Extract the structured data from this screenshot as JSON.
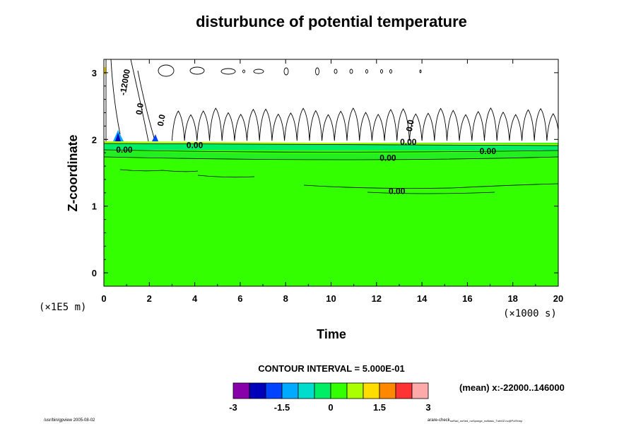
{
  "chart_data": {
    "type": "contour",
    "title": "disturbunce of potential temperature",
    "xlabel": "Time",
    "ylabel": "Z-coordinate",
    "x_scale_label": "(×1000 s)",
    "y_scale_label": "(×1E5 m)",
    "xlim": [
      0,
      20
    ],
    "ylim": [
      -0.2,
      3.2
    ],
    "x_ticks": [
      "0",
      "2",
      "4",
      "6",
      "8",
      "10",
      "12",
      "14",
      "16",
      "18",
      "20"
    ],
    "y_ticks": [
      "0",
      "1",
      "2",
      "3"
    ],
    "contour_interval_text": "CONTOUR INTERVAL = 5.000E-01",
    "colorbar": {
      "levels": [
        -3,
        -2.5,
        -2,
        -1.5,
        -1,
        -0.5,
        0,
        0.5,
        1,
        1.5,
        2,
        2.5,
        3
      ],
      "tick_labels": [
        "-3",
        "-1.5",
        "0",
        "1.5",
        "3"
      ],
      "colors": [
        "#8800aa",
        "#0000bb",
        "#0044ff",
        "#00aaff",
        "#00ddcc",
        "#00ee66",
        "#33ff00",
        "#aaff00",
        "#ffdd00",
        "#ff8800",
        "#ff3333",
        "#ffaaaa"
      ]
    },
    "background_fill_color": "#33ff00",
    "contour_labels": [
      {
        "text": "0.00",
        "x": 0.9,
        "y": 1.8
      },
      {
        "text": "0.00",
        "x": 4.0,
        "y": 1.87
      },
      {
        "text": "0.00",
        "x": 12.5,
        "y": 1.68
      },
      {
        "text": "0.00",
        "x": 16.9,
        "y": 1.78
      },
      {
        "text": "0.00",
        "x": 12.9,
        "y": 1.18
      },
      {
        "text": "-12000",
        "x": 1.05,
        "y": 2.85
      },
      {
        "text": "0.0",
        "x": 1.7,
        "y": 2.45
      },
      {
        "text": "0.0",
        "x": 2.65,
        "y": 2.28
      },
      {
        "text": "0.00",
        "x": 13.4,
        "y": 1.92
      },
      {
        "text": "0.0",
        "x": 13.6,
        "y": 2.2
      }
    ],
    "mean_note": "(mean) x:-22000..146000"
  },
  "footer": {
    "left": "/usr/bin/gpview 2005-08-02",
    "right": "arare-check",
    "right_sub": "noRad_noSed_noSponge_noBasic_Turb0Z.nc@PotTemp"
  }
}
